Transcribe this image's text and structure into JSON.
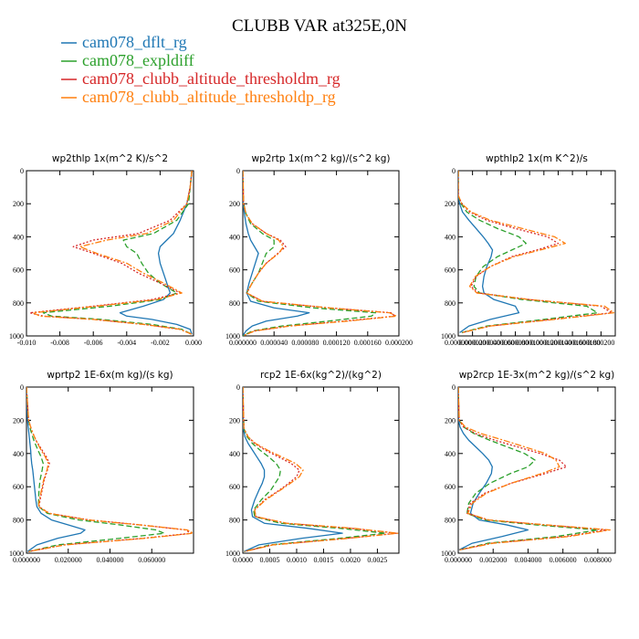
{
  "figure": {
    "title": "CLUBB VAR at325E,0N"
  },
  "legend": [
    {
      "name": "cam078_dflt_rg",
      "color": "#1f77b4",
      "dash": ""
    },
    {
      "name": "cam078_expldiff",
      "color": "#2ca02c",
      "dash": "6,3"
    },
    {
      "name": "cam078_clubb_altitude_thresholdm_rg",
      "color": "#d62728",
      "dash": "2,2"
    },
    {
      "name": "cam078_clubb_altitude_thresholdp_rg",
      "color": "#ff7f0e",
      "dash": "7,2,2,2"
    }
  ],
  "chart_data": [
    {
      "type": "line",
      "title": "wp2thlp 1x(m^2 K)/s^2",
      "xlim": [
        -0.01,
        0.0
      ],
      "ylim": [
        0,
        1000
      ],
      "xticks": [
        -0.01,
        -0.008,
        -0.006,
        -0.004,
        -0.002,
        0.0
      ],
      "xtick_labels": [
        "-0.010",
        "-0.008",
        "-0.006",
        "-0.004",
        "-0.002",
        "0.000"
      ],
      "yticks": [
        0,
        200,
        400,
        600,
        800,
        1000
      ],
      "ytick_labels": [
        "0",
        "200",
        "400",
        "600",
        "800",
        "1000"
      ],
      "y": [
        0,
        100,
        200,
        300,
        380,
        420,
        460,
        500,
        560,
        620,
        680,
        740,
        780,
        820,
        860,
        880,
        900,
        930,
        960,
        990
      ],
      "series": [
        {
          "name": "cam078_dflt_rg",
          "values": [
            -0.0001,
            -0.0002,
            -0.0004,
            -0.0008,
            -0.0012,
            -0.0016,
            -0.002,
            -0.0021,
            -0.002,
            -0.0018,
            -0.0016,
            -0.0014,
            -0.0018,
            -0.003,
            -0.0044,
            -0.004,
            -0.0025,
            -0.001,
            -0.0002,
            -0.0001
          ]
        },
        {
          "name": "cam078_expldiff",
          "values": [
            -0.0001,
            -0.0002,
            -0.0003,
            -0.001,
            -0.0024,
            -0.0042,
            -0.004,
            -0.0034,
            -0.0031,
            -0.0027,
            -0.002,
            -0.001,
            -0.002,
            -0.005,
            -0.009,
            -0.0085,
            -0.0055,
            -0.0025,
            -0.0007,
            -0.0001
          ]
        },
        {
          "name": "cam078_clubb_altitude_thresholdm_rg",
          "values": [
            -0.0001,
            -0.0002,
            -0.0004,
            -0.0014,
            -0.0033,
            -0.006,
            -0.0072,
            -0.006,
            -0.0043,
            -0.0033,
            -0.002,
            -0.0008,
            -0.0025,
            -0.006,
            -0.0098,
            -0.009,
            -0.006,
            -0.003,
            -0.0008,
            -0.0001
          ]
        },
        {
          "name": "cam078_clubb_altitude_thresholdp_rg",
          "values": [
            -0.0001,
            -0.0002,
            -0.0004,
            -0.0012,
            -0.0028,
            -0.0052,
            -0.0068,
            -0.0058,
            -0.004,
            -0.003,
            -0.0018,
            -0.0007,
            -0.0022,
            -0.0058,
            -0.0096,
            -0.0092,
            -0.006,
            -0.003,
            -0.0008,
            -0.0001
          ]
        }
      ]
    },
    {
      "type": "line",
      "title": "wp2rtp 1x(m^2 kg)/(s^2 kg)",
      "xlim": [
        0.0,
        0.0002
      ],
      "ylim": [
        0,
        1000
      ],
      "xticks": [
        0.0,
        4e-05,
        8e-05,
        0.00012,
        0.00016,
        0.0002
      ],
      "xtick_labels": [
        "0.000000",
        "0.000040",
        "0.000080",
        "0.000120",
        "0.000160",
        "0.000200"
      ],
      "yticks": [
        0,
        200,
        400,
        600,
        800,
        1000
      ],
      "ytick_labels": [
        "0",
        "200",
        "400",
        "600",
        "800",
        "1000"
      ],
      "y": [
        0,
        200,
        260,
        320,
        380,
        420,
        460,
        500,
        560,
        620,
        680,
        740,
        790,
        830,
        860,
        880,
        910,
        940,
        970,
        1000
      ],
      "series": [
        {
          "name": "cam078_dflt_rg",
          "values": [
            0.0,
            5e-07,
            2e-06,
            4e-06,
            7e-06,
            1e-05,
            1.5e-05,
            2e-05,
            1.6e-05,
            1.2e-05,
            8e-06,
            5e-06,
            1e-05,
            4e-05,
            8.5e-05,
            7e-05,
            3e-05,
            1.2e-05,
            4e-06,
            0.0
          ]
        },
        {
          "name": "cam078_expldiff",
          "values": [
            0.0,
            1e-06,
            4e-06,
            1e-05,
            2.5e-05,
            4e-05,
            4e-05,
            3e-05,
            2.5e-05,
            2e-05,
            1.2e-05,
            5e-06,
            2e-05,
            9e-05,
            0.00017,
            0.000165,
            0.00011,
            5e-05,
            1.2e-05,
            0.0
          ]
        },
        {
          "name": "cam078_clubb_altitude_thresholdm_rg",
          "values": [
            0.0,
            1e-06,
            4e-06,
            1.2e-05,
            3e-05,
            4.8e-05,
            5.5e-05,
            4.5e-05,
            3e-05,
            2e-05,
            1.2e-05,
            5e-06,
            2.5e-05,
            0.00011,
            0.00019,
            0.000195,
            0.00013,
            6e-05,
            1.5e-05,
            0.0
          ]
        },
        {
          "name": "cam078_clubb_altitude_thresholdp_rg",
          "values": [
            0.0,
            1e-06,
            4e-06,
            1.2e-05,
            3e-05,
            4.6e-05,
            5.2e-05,
            4.6e-05,
            3e-05,
            2e-05,
            1.2e-05,
            5e-06,
            2.5e-05,
            0.00011,
            0.000188,
            0.000197,
            0.000135,
            6e-05,
            1.5e-05,
            0.0
          ]
        }
      ]
    },
    {
      "type": "line",
      "title": "wpthlp2 1x(m K^2)/s",
      "xlim": [
        0.0,
        0.00022
      ],
      "ylim": [
        0,
        1000
      ],
      "xticks": [
        0.0,
        2e-05,
        4e-05,
        6e-05,
        8e-05,
        0.0001,
        0.00012,
        0.00014,
        0.00016,
        0.00018,
        0.0002
      ],
      "xtick_labels": [
        "0.000000",
        "0.000020",
        "0.000040",
        "0.000060",
        "0.000080",
        "0.000100",
        "0.000120",
        "0.000140",
        "0.000160",
        "0.000180",
        "0.000200"
      ],
      "yticks": [
        0,
        200,
        400,
        600,
        800,
        1000
      ],
      "ytick_labels": [
        "0",
        "200",
        "400",
        "600",
        "800",
        "1000"
      ],
      "y": [
        0,
        150,
        200,
        250,
        300,
        350,
        400,
        440,
        480,
        520,
        580,
        640,
        700,
        740,
        780,
        820,
        860,
        900,
        940,
        980
      ],
      "series": [
        {
          "name": "cam078_dflt_rg",
          "values": [
            0.0,
            0.0,
            2e-06,
            6e-06,
            1.5e-05,
            2.5e-05,
            3.5e-05,
            4.2e-05,
            4.8e-05,
            4.6e-05,
            4e-05,
            3.6e-05,
            3.4e-05,
            3.6e-05,
            5e-05,
            8e-05,
            8.5e-05,
            4.5e-05,
            1.5e-05,
            2e-06
          ]
        },
        {
          "name": "cam078_expldiff",
          "values": [
            0.0,
            0.0,
            4e-06,
            1.2e-05,
            3e-05,
            5.5e-05,
            8.5e-05,
            9.5e-05,
            7.5e-05,
            5.5e-05,
            3.5e-05,
            2.5e-05,
            2.2e-05,
            3e-05,
            9e-05,
            0.00018,
            0.000195,
            0.00012,
            4e-05,
            5e-06
          ]
        },
        {
          "name": "cam078_clubb_altitude_thresholdm_rg",
          "values": [
            0.0,
            0.0,
            5e-06,
            1.6e-05,
            4e-05,
            8e-05,
            0.000125,
            0.00014,
            0.00011,
            7.5e-05,
            4.5e-05,
            2.5e-05,
            1.8e-05,
            2.8e-05,
            0.0001,
            0.0002,
            0.000215,
            0.00013,
            4.5e-05,
            5e-06
          ]
        },
        {
          "name": "cam078_clubb_altitude_thresholdp_rg",
          "values": [
            0.0,
            0.0,
            5e-06,
            1.8e-05,
            4.5e-05,
            9e-05,
            0.000135,
            0.00015,
            0.000115,
            7.8e-05,
            4.5e-05,
            2.4e-05,
            1.6e-05,
            2.6e-05,
            0.0001,
            0.000205,
            0.000218,
            0.000135,
            4.5e-05,
            5e-06
          ]
        }
      ]
    },
    {
      "type": "line",
      "title": "wprtp2 1E-6x(m kg)/(s kg)",
      "xlim": [
        0.0,
        0.08
      ],
      "ylim": [
        0,
        1000
      ],
      "xticks": [
        0.0,
        0.02,
        0.04,
        0.06
      ],
      "xtick_labels": [
        "0.000000",
        "0.020000",
        "0.040000",
        "0.060000"
      ],
      "yticks": [
        0,
        200,
        400,
        600,
        800,
        1000
      ],
      "ytick_labels": [
        "0",
        "200",
        "400",
        "600",
        "800",
        "1000"
      ],
      "y": [
        0,
        200,
        260,
        320,
        380,
        420,
        460,
        500,
        560,
        620,
        680,
        720,
        760,
        800,
        830,
        860,
        880,
        910,
        950,
        990
      ],
      "series": [
        {
          "name": "cam078_dflt_rg",
          "values": [
            0.0,
            0.0005,
            0.001,
            0.0015,
            0.002,
            0.0022,
            0.0025,
            0.003,
            0.0035,
            0.004,
            0.0045,
            0.005,
            0.007,
            0.012,
            0.02,
            0.028,
            0.026,
            0.015,
            0.005,
            0.0005
          ]
        },
        {
          "name": "cam078_expldiff",
          "values": [
            0.0,
            0.001,
            0.002,
            0.0035,
            0.0055,
            0.007,
            0.008,
            0.0075,
            0.0065,
            0.006,
            0.0058,
            0.0058,
            0.01,
            0.025,
            0.045,
            0.062,
            0.066,
            0.045,
            0.015,
            0.001
          ]
        },
        {
          "name": "cam078_clubb_altitude_thresholdm_rg",
          "values": [
            0.0,
            0.001,
            0.0025,
            0.0045,
            0.0075,
            0.0095,
            0.011,
            0.01,
            0.0085,
            0.0075,
            0.0065,
            0.006,
            0.011,
            0.03,
            0.055,
            0.076,
            0.079,
            0.056,
            0.018,
            0.001
          ]
        },
        {
          "name": "cam078_clubb_altitude_thresholdp_rg",
          "values": [
            0.0,
            0.001,
            0.0025,
            0.0045,
            0.007,
            0.009,
            0.0105,
            0.0098,
            0.0082,
            0.0072,
            0.0062,
            0.0058,
            0.0108,
            0.0295,
            0.0545,
            0.077,
            0.0798,
            0.057,
            0.0185,
            0.001
          ]
        }
      ]
    },
    {
      "type": "line",
      "title": "rcp2 1E-6x(kg^2)/(kg^2)",
      "xlim": [
        0.0,
        0.0029
      ],
      "ylim": [
        0,
        1000
      ],
      "xticks": [
        0.0,
        0.0005,
        0.001,
        0.0015,
        0.002,
        0.0025
      ],
      "xtick_labels": [
        "0.0000",
        "0.0005",
        "0.0010",
        "0.0015",
        "0.0020",
        "0.0025"
      ],
      "yticks": [
        0,
        200,
        400,
        600,
        800,
        1000
      ],
      "ytick_labels": [
        "0",
        "200",
        "400",
        "600",
        "800",
        "1000"
      ],
      "y": [
        0,
        250,
        300,
        340,
        380,
        420,
        460,
        500,
        540,
        580,
        620,
        680,
        740,
        780,
        820,
        850,
        880,
        910,
        950,
        990
      ],
      "series": [
        {
          "name": "cam078_dflt_rg",
          "values": [
            0.0,
            1e-05,
            4e-05,
            0.0001,
            0.00018,
            0.00026,
            0.00034,
            0.0004,
            0.0004,
            0.00036,
            0.0003,
            0.00022,
            0.00016,
            0.00018,
            0.0004,
            0.0012,
            0.00185,
            0.0011,
            0.0003,
            2e-05
          ]
        },
        {
          "name": "cam078_expldiff",
          "values": [
            0.0,
            2e-05,
            8e-05,
            0.00018,
            0.00032,
            0.00048,
            0.00062,
            0.0007,
            0.00068,
            0.0006,
            0.00052,
            0.00034,
            0.0002,
            0.00022,
            0.0007,
            0.0018,
            0.00265,
            0.0018,
            0.0005,
            3e-05
          ]
        },
        {
          "name": "cam078_clubb_altitude_thresholdm_rg",
          "values": [
            0.0,
            2e-05,
            0.0001,
            0.00022,
            0.00042,
            0.00066,
            0.0009,
            0.00105,
            0.001,
            0.00085,
            0.00068,
            0.0004,
            0.00022,
            0.00024,
            0.0008,
            0.002,
            0.00285,
            0.00195,
            0.00055,
            3e-05
          ]
        },
        {
          "name": "cam078_clubb_altitude_thresholdp_rg",
          "values": [
            0.0,
            2e-05,
            0.0001,
            0.00024,
            0.00046,
            0.00072,
            0.00098,
            0.00112,
            0.00105,
            0.00088,
            0.0007,
            0.00042,
            0.00022,
            0.00024,
            0.00082,
            0.00205,
            0.00288,
            0.00198,
            0.00056,
            3e-05
          ]
        }
      ]
    },
    {
      "type": "line",
      "title": "wp2rcp 1E-3x(m^2 kg)/(s^2 kg)",
      "xlim": [
        0.0,
        0.009
      ],
      "ylim": [
        0,
        1000
      ],
      "xticks": [
        0.0,
        0.002,
        0.004,
        0.006,
        0.008
      ],
      "xtick_labels": [
        "0.000000",
        "0.002000",
        "0.004000",
        "0.006000",
        "0.008000"
      ],
      "yticks": [
        0,
        200,
        400,
        600,
        800,
        1000
      ],
      "ytick_labels": [
        "0",
        "200",
        "400",
        "600",
        "800",
        "1000"
      ],
      "y": [
        0,
        200,
        240,
        280,
        320,
        360,
        400,
        440,
        480,
        520,
        580,
        640,
        700,
        760,
        800,
        830,
        860,
        900,
        940,
        980
      ],
      "series": [
        {
          "name": "cam078_dflt_rg",
          "values": [
            0.0,
            2e-05,
            0.0001,
            0.0003,
            0.0006,
            0.001,
            0.0014,
            0.00175,
            0.00195,
            0.0019,
            0.0016,
            0.0012,
            0.00085,
            0.0007,
            0.0012,
            0.0028,
            0.004,
            0.0025,
            0.0008,
            5e-05
          ]
        },
        {
          "name": "cam078_expldiff",
          "values": [
            0.0,
            5e-05,
            0.0003,
            0.0009,
            0.0018,
            0.0028,
            0.0038,
            0.0044,
            0.004,
            0.003,
            0.0018,
            0.001,
            0.0006,
            0.0005,
            0.0015,
            0.0045,
            0.008,
            0.0056,
            0.0017,
            8e-05
          ]
        },
        {
          "name": "cam078_clubb_altitude_thresholdm_rg",
          "values": [
            0.0,
            5e-05,
            0.0003,
            0.001,
            0.0021,
            0.0034,
            0.0047,
            0.0058,
            0.0062,
            0.005,
            0.003,
            0.0015,
            0.0007,
            0.0005,
            0.0017,
            0.005,
            0.0085,
            0.0061,
            0.0019,
            8e-05
          ]
        },
        {
          "name": "cam078_clubb_altitude_thresholdp_rg",
          "values": [
            0.0,
            6e-05,
            0.0004,
            0.0013,
            0.0026,
            0.0038,
            0.005,
            0.0056,
            0.0058,
            0.0048,
            0.003,
            0.0016,
            0.0008,
            0.00055,
            0.00175,
            0.0051,
            0.0087,
            0.0063,
            0.002,
            8e-05
          ]
        }
      ]
    }
  ]
}
